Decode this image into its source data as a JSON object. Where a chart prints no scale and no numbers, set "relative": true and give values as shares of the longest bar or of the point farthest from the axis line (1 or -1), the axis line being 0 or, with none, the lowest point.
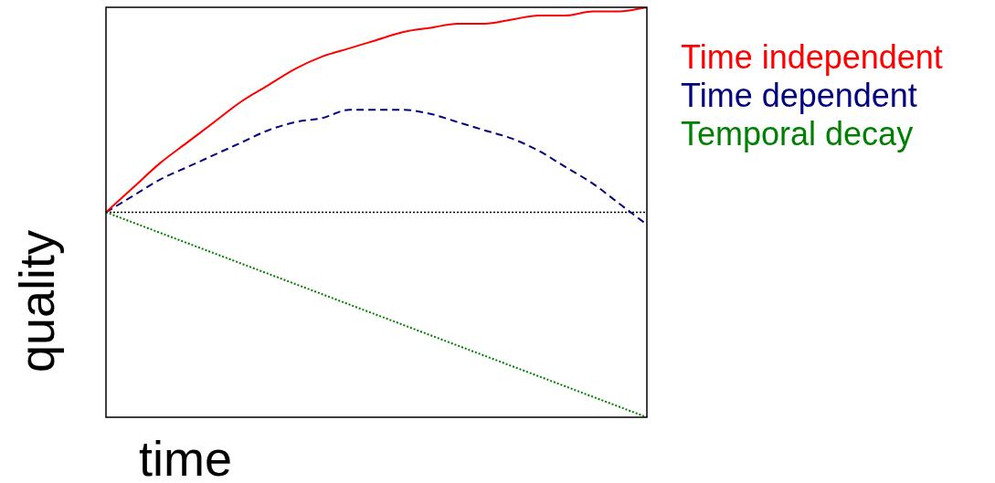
{
  "chart_data": {
    "type": "line",
    "relative": true,
    "xlabel": "time",
    "ylabel": "quality",
    "legend": "top right",
    "marker": "none",
    "categories": [
      null,
      null,
      null,
      null,
      null,
      null,
      null,
      null,
      null,
      null,
      null,
      null,
      null,
      null,
      null,
      null,
      null,
      null,
      null,
      null,
      null
    ],
    "series": [
      {
        "name": "Time independent",
        "color": "#ff0000",
        "line_style": "solid",
        "values": [
          0.5,
          0.56,
          0.62,
          0.67,
          0.72,
          0.77,
          0.81,
          0.85,
          0.88,
          0.9,
          0.92,
          0.94,
          0.95,
          0.96,
          0.96,
          0.97,
          0.98,
          0.98,
          0.99,
          0.99,
          1.0
        ]
      },
      {
        "name": "Time dependent",
        "color": "#000080",
        "line_style": "dashed",
        "values": [
          0.5,
          0.54,
          0.58,
          0.61,
          0.64,
          0.67,
          0.7,
          0.72,
          0.73,
          0.75,
          0.75,
          0.75,
          0.74,
          0.72,
          0.7,
          0.68,
          0.65,
          0.61,
          0.57,
          0.52,
          0.47
        ]
      },
      {
        "name": "Temporal decay",
        "color": "#008000",
        "line_style": "dotted",
        "values": [
          0.5,
          0.475,
          0.45,
          0.425,
          0.4,
          0.375,
          0.35,
          0.325,
          0.3,
          0.275,
          0.25,
          0.225,
          0.2,
          0.175,
          0.15,
          0.125,
          0.1,
          0.075,
          0.05,
          0.025,
          0.0
        ]
      }
    ],
    "ref_lines": [
      {
        "axis": "y",
        "value": 0.5,
        "color": "#000000",
        "line_style": "dotted"
      }
    ]
  }
}
